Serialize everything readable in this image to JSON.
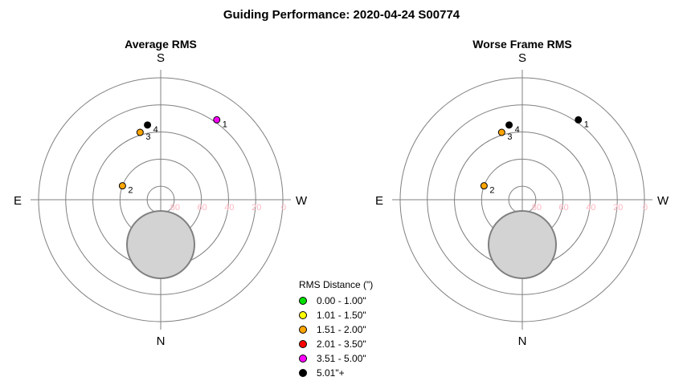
{
  "title": "Guiding Performance: 2020-04-24 S00774",
  "legend": {
    "title": "RMS Distance (\")",
    "items": [
      {
        "label": "0.00 - 1.00\"",
        "color": "#00e000"
      },
      {
        "label": "1.01 - 1.50\"",
        "color": "#ffff00"
      },
      {
        "label": "1.51 - 2.00\"",
        "color": "#ffa500"
      },
      {
        "label": "2.01 - 3.50\"",
        "color": "#ff0000"
      },
      {
        "label": "3.51 - 5.00\"",
        "color": "#ff00ff"
      },
      {
        "label": "5.01\"+",
        "color": "#000000"
      }
    ]
  },
  "chart_data": [
    {
      "type": "polar-scatter",
      "title": "Average RMS",
      "directions": {
        "top": "S",
        "bottom": "N",
        "left": "E",
        "right": "W"
      },
      "radial_ticks": [
        "80",
        "60",
        "40",
        "20",
        "0"
      ],
      "altitude_axis": {
        "center": 90,
        "edge": 0,
        "rings": [
          80,
          60,
          40,
          20,
          0
        ]
      },
      "points": [
        {
          "label": "1",
          "altitude": 18,
          "azimuth": 215,
          "rms_class": "3.51 - 5.00\"",
          "color": "#ff00ff"
        },
        {
          "label": "2",
          "altitude": 60,
          "azimuth": 110,
          "rms_class": "1.51 - 2.00\"",
          "color": "#ffa500"
        },
        {
          "label": "3",
          "altitude": 38,
          "azimuth": 163,
          "rms_class": "1.51 - 2.00\"",
          "color": "#ffa500"
        },
        {
          "label": "4",
          "altitude": 34,
          "azimuth": 170,
          "rms_class": "5.01\"+",
          "color": "#000000"
        }
      ],
      "obstruction": {
        "shape": "circle",
        "position": "lower center, near N",
        "color": "#d3d3d3"
      }
    },
    {
      "type": "polar-scatter",
      "title": "Worse Frame RMS",
      "directions": {
        "top": "S",
        "bottom": "N",
        "left": "E",
        "right": "W"
      },
      "radial_ticks": [
        "80",
        "60",
        "40",
        "20",
        "0"
      ],
      "altitude_axis": {
        "center": 90,
        "edge": 0,
        "rings": [
          80,
          60,
          40,
          20,
          0
        ]
      },
      "points": [
        {
          "label": "1",
          "altitude": 18,
          "azimuth": 215,
          "rms_class": "5.01\"+",
          "color": "#000000"
        },
        {
          "label": "2",
          "altitude": 60,
          "azimuth": 110,
          "rms_class": "1.51 - 2.00\"",
          "color": "#ffa500"
        },
        {
          "label": "3",
          "altitude": 38,
          "azimuth": 163,
          "rms_class": "1.51 - 2.00\"",
          "color": "#ffa500"
        },
        {
          "label": "4",
          "altitude": 34,
          "azimuth": 170,
          "rms_class": "5.01\"+",
          "color": "#000000"
        }
      ],
      "obstruction": {
        "shape": "circle",
        "position": "lower center, near N",
        "color": "#d3d3d3"
      }
    }
  ]
}
